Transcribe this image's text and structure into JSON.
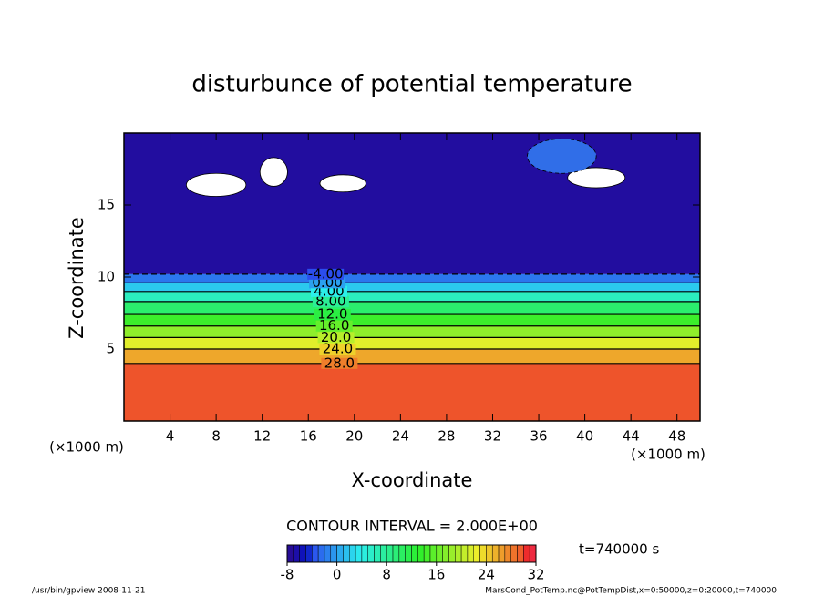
{
  "chart_data": {
    "type": "contour",
    "title": "disturbunce of potential temperature",
    "xlabel": "X-coordinate",
    "ylabel": "Z-coordinate",
    "x_unit": "(×1000 m)",
    "y_unit": "(×1000 m)",
    "xlim": [
      0,
      50
    ],
    "xticks": [
      4,
      8,
      12,
      16,
      20,
      24,
      28,
      32,
      36,
      40,
      44,
      48
    ],
    "ylim": [
      0,
      20
    ],
    "yticks": [
      5,
      10,
      15
    ],
    "contour_interval": "CONTOUR INTERVAL = 2.000E+00",
    "time": "t=740000 s",
    "contour_levels": [
      {
        "value": 28,
        "label": "28.0",
        "z": 4.0
      },
      {
        "value": 24,
        "label": "24.0",
        "z": 5.0
      },
      {
        "value": 20,
        "label": "20.0",
        "z": 5.8
      },
      {
        "value": 16,
        "label": "16.0",
        "z": 6.6
      },
      {
        "value": 12,
        "label": "12.0",
        "z": 7.4
      },
      {
        "value": 8,
        "label": "8.00",
        "z": 8.3
      },
      {
        "value": 4,
        "label": "4.00",
        "z": 9.0
      },
      {
        "value": 0,
        "label": "0.00",
        "z": 9.6
      },
      {
        "value": -4,
        "label": "-4.00",
        "z": 10.2
      }
    ],
    "colorbar_lim": [
      -8,
      32
    ],
    "colorbar_ticks": [
      -8,
      0,
      8,
      16,
      24,
      32
    ],
    "footer_left": "/usr/bin/gpview   2008-11-21",
    "footer_right": "MarsCond_PotTemp.nc@PotTempDist,x=0:50000,z=0:20000,t=740000"
  }
}
